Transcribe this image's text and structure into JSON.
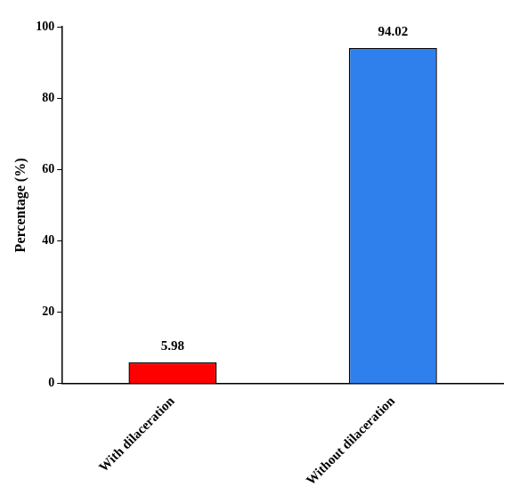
{
  "chart_data": {
    "type": "bar",
    "categories": [
      "With dilaceration",
      "Without dilaceration"
    ],
    "values": [
      5.98,
      94.02
    ],
    "colors": [
      "#ff0000",
      "#2f80ed"
    ],
    "y_label": "Percentage (%)",
    "ylim": [
      0,
      100
    ],
    "yticks": [
      0,
      20,
      40,
      60,
      80,
      100
    ],
    "grid": false,
    "data_labels": true
  }
}
